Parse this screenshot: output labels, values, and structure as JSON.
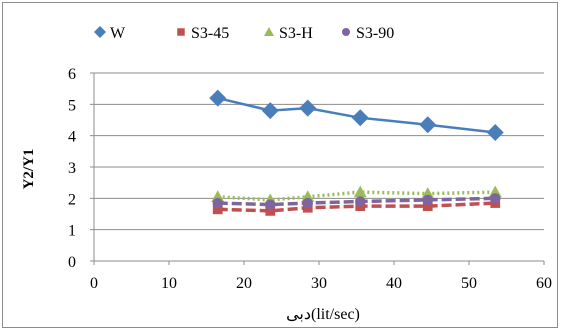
{
  "chart_data": {
    "type": "line",
    "xlabel": "دبی(lit/sec)",
    "ylabel": "Y2/Y1",
    "xlim": [
      0,
      60
    ],
    "ylim": [
      0,
      6
    ],
    "xticks": [
      0,
      10,
      20,
      30,
      40,
      50,
      60
    ],
    "yticks": [
      0,
      1,
      2,
      3,
      4,
      5,
      6
    ],
    "grid": "horizontal major gridlines",
    "legend_position": "top",
    "series": [
      {
        "name": "W",
        "color": "#4a7ebb",
        "marker": "diamond",
        "line_style": "solid",
        "x": [
          16.5,
          23.5,
          28.5,
          35.5,
          44.5,
          53.5
        ],
        "y": [
          5.2,
          4.8,
          4.88,
          4.57,
          4.35,
          4.1
        ]
      },
      {
        "name": "S3-45",
        "color": "#c0504d",
        "marker": "square",
        "line_style": "dashed",
        "x": [
          16.5,
          23.5,
          28.5,
          35.5,
          44.5,
          53.5
        ],
        "y": [
          1.65,
          1.6,
          1.7,
          1.75,
          1.75,
          1.85
        ]
      },
      {
        "name": "S3-H",
        "color": "#9bbb59",
        "marker": "triangle",
        "line_style": "dotted",
        "x": [
          16.5,
          23.5,
          28.5,
          35.5,
          44.5,
          53.5
        ],
        "y": [
          2.05,
          1.95,
          2.05,
          2.2,
          2.15,
          2.2
        ]
      },
      {
        "name": "S3-90",
        "color": "#8064a2",
        "marker": "circle",
        "line_style": "dashed",
        "x": [
          16.5,
          23.5,
          28.5,
          35.5,
          44.5,
          53.5
        ],
        "y": [
          1.85,
          1.8,
          1.85,
          1.9,
          1.95,
          2.0
        ]
      }
    ]
  }
}
